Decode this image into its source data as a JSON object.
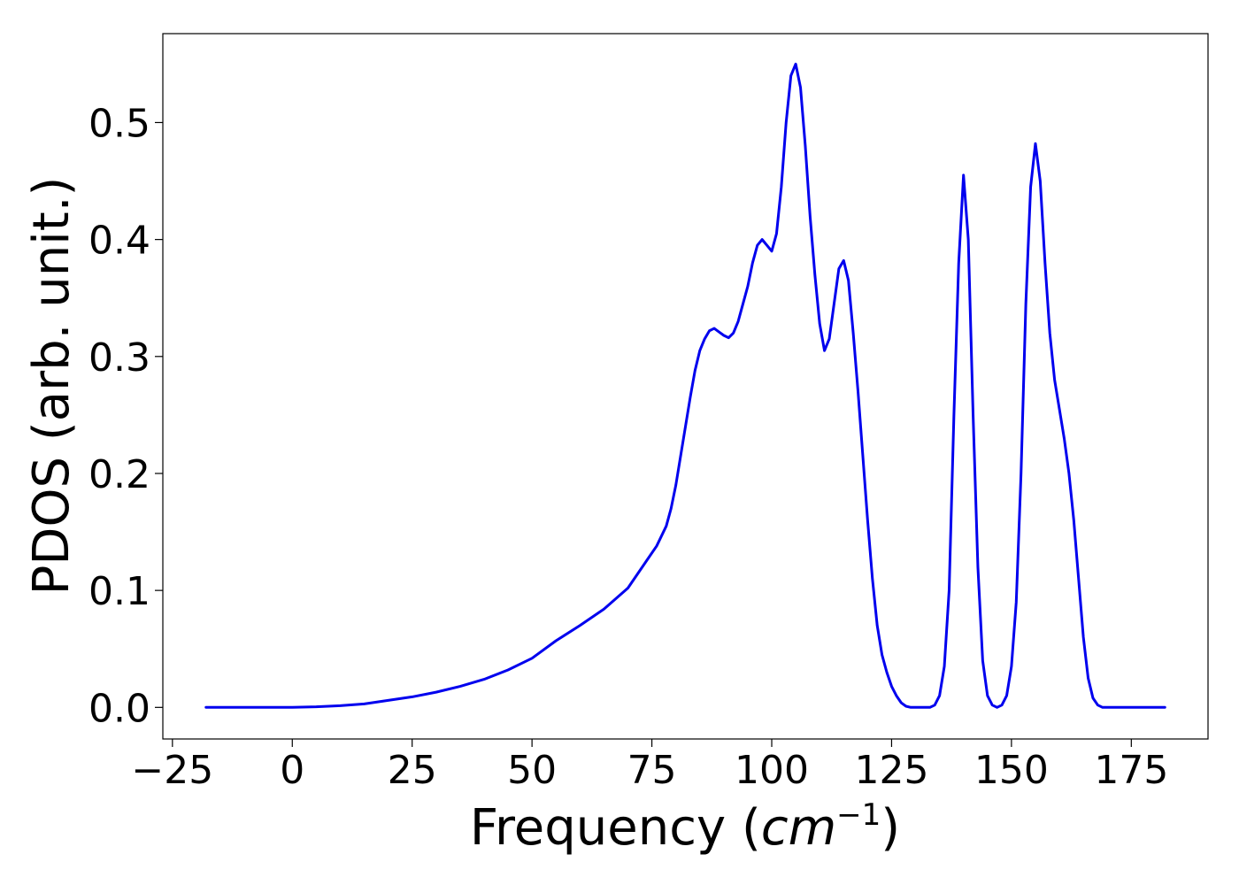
{
  "chart_data": {
    "type": "line",
    "title": "",
    "xlabel": "Frequency (",
    "xlabel_math": "cm",
    "xlabel_sup": "−1",
    "xlabel_close": ")",
    "ylabel": "PDOS (arb. unit.)",
    "xlim": [
      -27,
      191
    ],
    "ylim": [
      -0.027,
      0.576
    ],
    "xticks": [
      -25,
      0,
      25,
      50,
      75,
      100,
      125,
      150,
      175
    ],
    "xtick_labels": [
      "−25",
      "0",
      "25",
      "50",
      "75",
      "100",
      "125",
      "150",
      "175"
    ],
    "yticks": [
      0.0,
      0.1,
      0.2,
      0.3,
      0.4,
      0.5
    ],
    "ytick_labels": [
      "0.0",
      "0.1",
      "0.2",
      "0.3",
      "0.4",
      "0.5"
    ],
    "grid": false,
    "line_color": "#0000ee",
    "series": [
      {
        "x": [
          -18,
          -10,
          0,
          5,
          10,
          15,
          20,
          25,
          30,
          35,
          40,
          45,
          50,
          55,
          60,
          65,
          70,
          72,
          74,
          76,
          78,
          79,
          80,
          81,
          82,
          83,
          84,
          85,
          86,
          87,
          88,
          89,
          90,
          91,
          92,
          93,
          94,
          95,
          96,
          97,
          98,
          99,
          100,
          101,
          102,
          103,
          104,
          105,
          106,
          107,
          108,
          109,
          110,
          111,
          112,
          113,
          114,
          115,
          116,
          117,
          118,
          119,
          120,
          121,
          122,
          123,
          124,
          125,
          126,
          127,
          128,
          129,
          130,
          131,
          132,
          133,
          134,
          135,
          136,
          137,
          138,
          139,
          140,
          141,
          142,
          143,
          144,
          145,
          146,
          147,
          148,
          149,
          150,
          151,
          152,
          153,
          154,
          155,
          156,
          157,
          158,
          159,
          160,
          161,
          162,
          163,
          164,
          165,
          166,
          167,
          168,
          169,
          170,
          172,
          175,
          182
        ],
        "y": [
          0.0,
          0.0,
          0.0,
          0.0005,
          0.0015,
          0.003,
          0.006,
          0.009,
          0.013,
          0.018,
          0.024,
          0.032,
          0.042,
          0.057,
          0.07,
          0.084,
          0.102,
          0.114,
          0.126,
          0.138,
          0.155,
          0.17,
          0.19,
          0.215,
          0.24,
          0.265,
          0.288,
          0.305,
          0.315,
          0.322,
          0.324,
          0.321,
          0.318,
          0.316,
          0.32,
          0.33,
          0.345,
          0.36,
          0.38,
          0.395,
          0.4,
          0.395,
          0.39,
          0.405,
          0.445,
          0.5,
          0.54,
          0.55,
          0.53,
          0.48,
          0.42,
          0.37,
          0.328,
          0.305,
          0.315,
          0.345,
          0.375,
          0.382,
          0.365,
          0.32,
          0.27,
          0.215,
          0.16,
          0.11,
          0.07,
          0.045,
          0.03,
          0.018,
          0.01,
          0.004,
          0.001,
          0.0,
          0.0,
          0.0,
          0.0,
          0.0,
          0.002,
          0.01,
          0.035,
          0.1,
          0.25,
          0.38,
          0.455,
          0.4,
          0.25,
          0.12,
          0.04,
          0.01,
          0.002,
          0.0,
          0.002,
          0.01,
          0.035,
          0.09,
          0.2,
          0.345,
          0.445,
          0.482,
          0.45,
          0.38,
          0.32,
          0.28,
          0.255,
          0.23,
          0.2,
          0.16,
          0.11,
          0.06,
          0.025,
          0.008,
          0.002,
          0.0,
          0.0,
          0.0,
          0.0,
          0.0
        ]
      }
    ]
  }
}
